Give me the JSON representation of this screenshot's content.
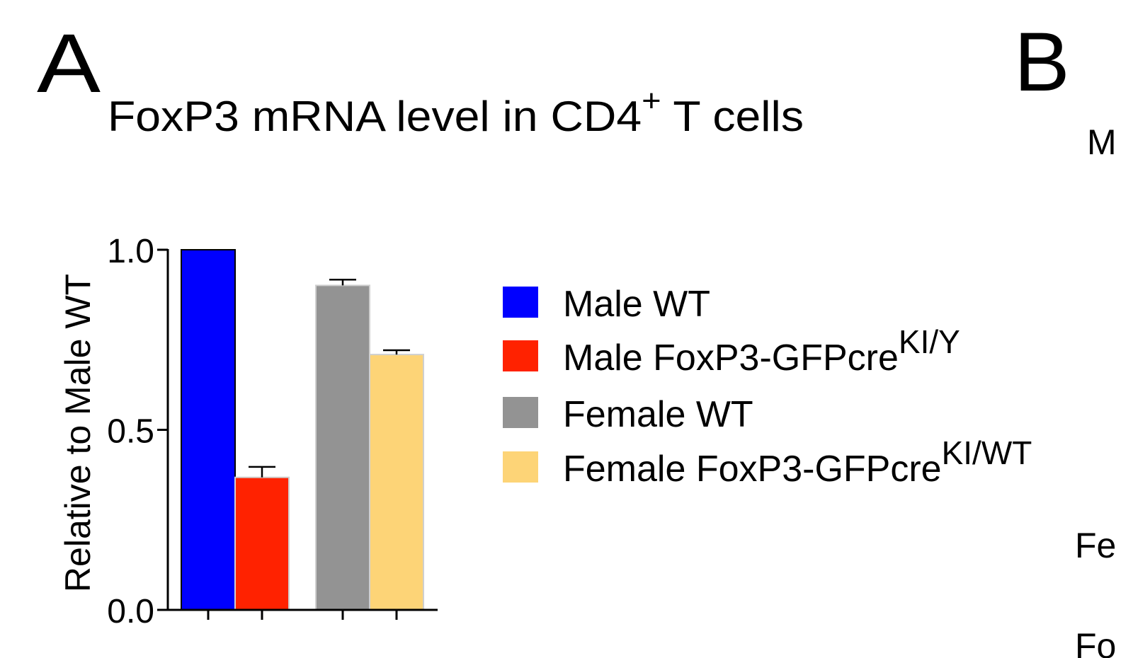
{
  "panels": {
    "a_label": "A",
    "b_label": "B"
  },
  "panel_b_partial": {
    "line1": "M",
    "line2": "Fe",
    "line3": "Fo"
  },
  "chart_data": {
    "type": "bar",
    "title": "FoxP3 mRNA level in CD4",
    "title_sup": "+",
    "title_suffix": " T cells",
    "ylabel": "Relative to Male WT",
    "xlabel": "",
    "ylim": [
      0,
      1.0
    ],
    "yticks": [
      "0.0",
      "0.5",
      "1.0"
    ],
    "ytick_values": [
      0,
      0.5,
      1.0
    ],
    "grid": false,
    "legend_position": "right",
    "categories": [
      "Male WT",
      "Male FoxP3-GFPcre KI/Y",
      "Female WT",
      "Female FoxP3-GFPcre KI/WT"
    ],
    "series": [
      {
        "name": "Male WT",
        "legend_sup": "",
        "value": 1.0,
        "error": 0.0,
        "color": "#0000FF"
      },
      {
        "name": "Male FoxP3-GFPcre",
        "legend_sup": "KI/Y",
        "value": 0.368,
        "error": 0.029,
        "color": "#FF2200"
      },
      {
        "name": "Female WT",
        "legend_sup": "",
        "value": 0.901,
        "error": 0.016,
        "color": "#939393"
      },
      {
        "name": "Female FoxP3-GFPcre",
        "legend_sup": "KI/WT",
        "value": 0.709,
        "error": 0.012,
        "color": "#FDD477"
      }
    ]
  }
}
